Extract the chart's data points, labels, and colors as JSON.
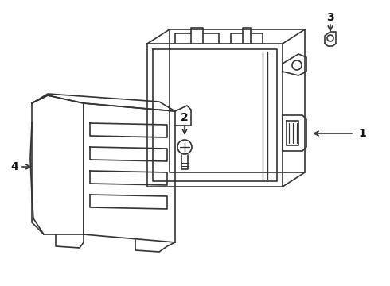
{
  "bg_color": "#ffffff",
  "line_color": "#333333",
  "lw": 1.2,
  "label_fontsize": 10,
  "arrow_color": "#333333"
}
